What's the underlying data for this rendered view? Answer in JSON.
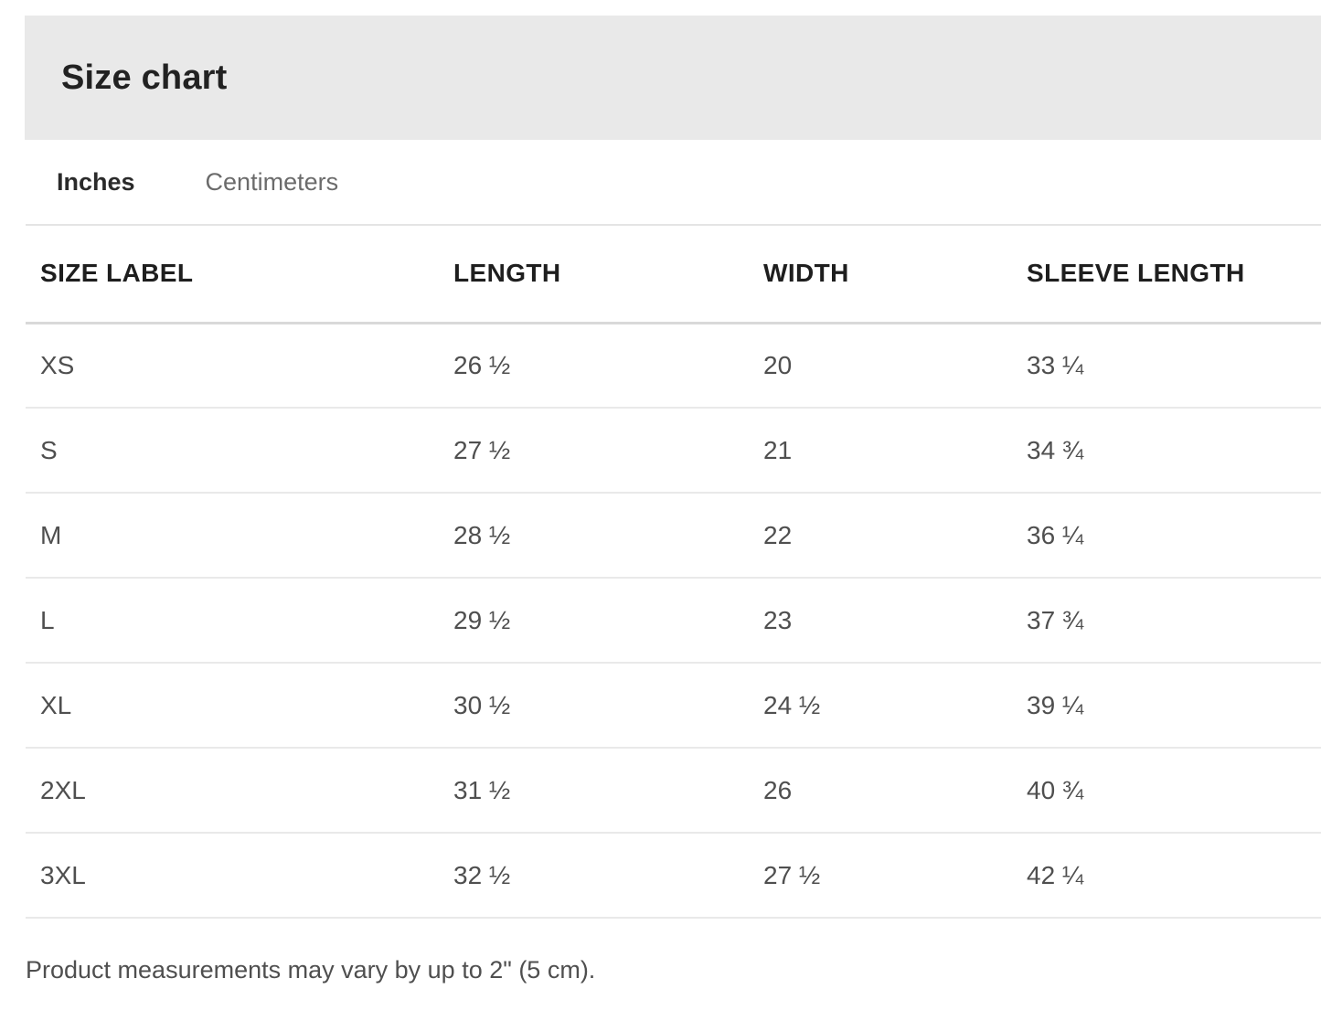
{
  "header": {
    "title": "Size chart"
  },
  "tabs": {
    "inches": {
      "label": "Inches",
      "active": true
    },
    "centimeters": {
      "label": "Centimeters",
      "active": false
    }
  },
  "table": {
    "columns": [
      "SIZE LABEL",
      "LENGTH",
      "WIDTH",
      "SLEEVE LENGTH"
    ],
    "rows": [
      [
        "XS",
        "26 ½",
        "20",
        "33 ¼"
      ],
      [
        "S",
        "27 ½",
        "21",
        "34 ¾"
      ],
      [
        "M",
        "28 ½",
        "22",
        "36 ¼"
      ],
      [
        "L",
        "29 ½",
        "23",
        "37 ¾"
      ],
      [
        "XL",
        "30 ½",
        "24 ½",
        "39 ¼"
      ],
      [
        "2XL",
        "31 ½",
        "26",
        "40 ¾"
      ],
      [
        "3XL",
        "32 ½",
        "27 ½",
        "42 ¼"
      ]
    ],
    "unit": "inches"
  },
  "footer": {
    "note": "Product measurements may vary by up to 2\" (5 cm)."
  },
  "colors": {
    "header_band_background": "#e9e9e9",
    "title_text": "#222222",
    "active_tab_text": "#2a2a2a",
    "inactive_tab_text": "#6b6b6b",
    "table_header_text": "#1e1e1e",
    "table_cell_text": "#4f4f4f",
    "divider": "#e4e4e4",
    "header_divider": "#d9d9d9"
  }
}
